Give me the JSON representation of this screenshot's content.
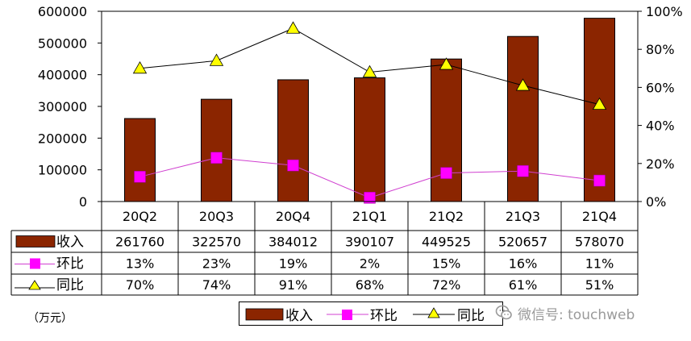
{
  "chart_data": {
    "type": "bar",
    "categories": [
      "20Q2",
      "20Q3",
      "20Q4",
      "21Q1",
      "21Q2",
      "21Q3",
      "21Q4"
    ],
    "series": [
      {
        "name": "收入",
        "kind": "bar",
        "axis": "left",
        "values": [
          261760,
          322570,
          384012,
          390107,
          449525,
          520657,
          578070
        ]
      },
      {
        "name": "环比",
        "kind": "line",
        "axis": "right",
        "marker": "square",
        "values": [
          13,
          23,
          19,
          2,
          15,
          16,
          11
        ]
      },
      {
        "name": "同比",
        "kind": "line",
        "axis": "right",
        "marker": "triangle",
        "values": [
          70,
          74,
          91,
          68,
          72,
          61,
          51
        ]
      }
    ],
    "table_rows": [
      {
        "label": "收入",
        "cells": [
          "261760",
          "322570",
          "384012",
          "390107",
          "449525",
          "520657",
          "578070"
        ]
      },
      {
        "label": "环比",
        "cells": [
          "13%",
          "23%",
          "19%",
          "2%",
          "15%",
          "16%",
          "11%"
        ]
      },
      {
        "label": "同比",
        "cells": [
          "70%",
          "74%",
          "91%",
          "68%",
          "72%",
          "61%",
          "51%"
        ]
      }
    ],
    "ylim_left": [
      0,
      600000
    ],
    "ylim_right": [
      0,
      100
    ],
    "left_ticks": [
      "0",
      "100000",
      "200000",
      "300000",
      "400000",
      "500000",
      "600000"
    ],
    "right_ticks": [
      "0%",
      "20%",
      "40%",
      "60%",
      "80%",
      "100%"
    ],
    "unit_note": "（万元）",
    "legend": {
      "position": "bottom",
      "entries": [
        "收入",
        "环比",
        "同比"
      ]
    },
    "colors": {
      "bar": "#8B2500",
      "huanbi": "#FF00FF",
      "tongbi": "#FFFF00",
      "line": "#000000"
    },
    "grid": false
  },
  "watermark": {
    "text": "微信号: touchweb",
    "icon": "wechat-icon"
  }
}
